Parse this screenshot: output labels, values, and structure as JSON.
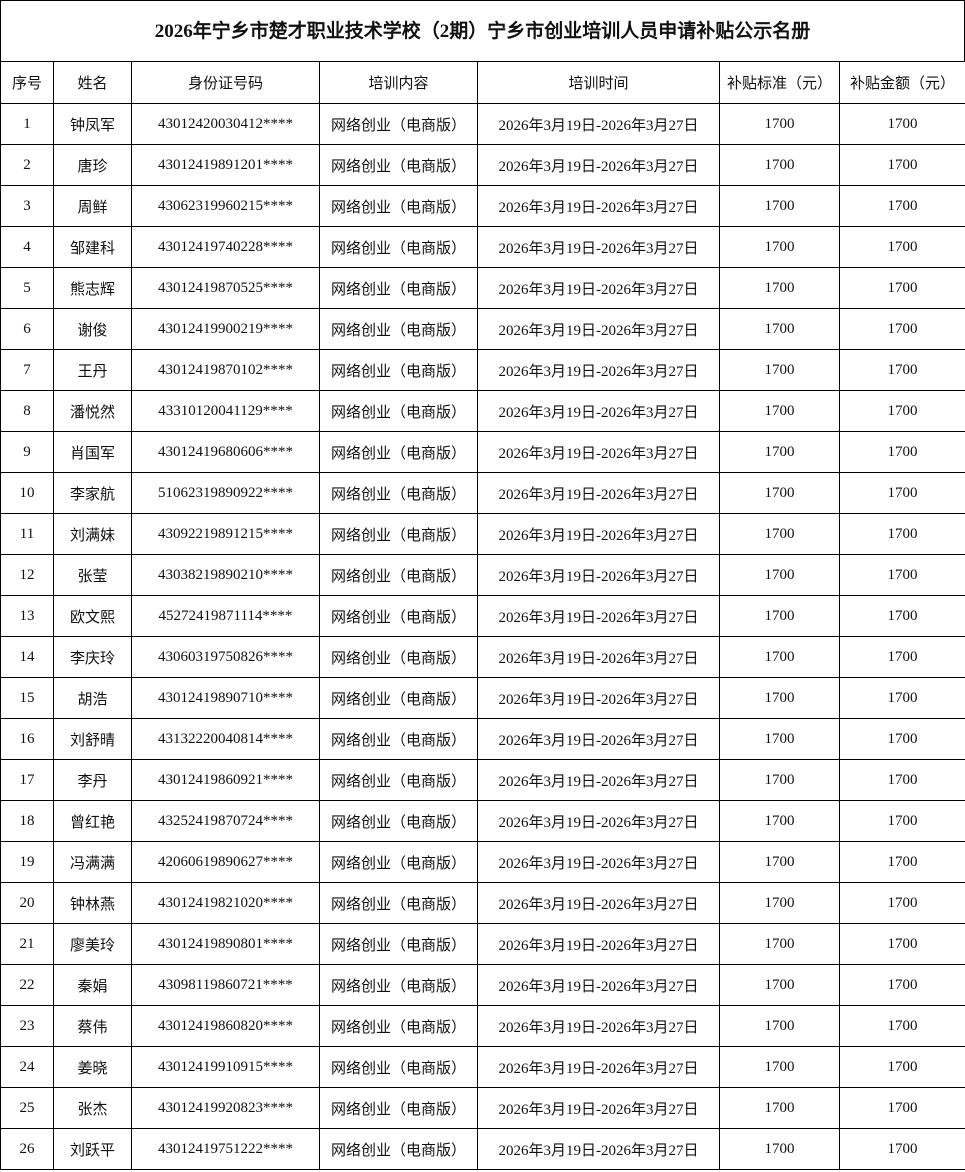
{
  "title": "2026年宁乡市楚才职业技术学校（2期）宁乡市创业培训人员申请补贴公示名册",
  "columns": [
    "序号",
    "姓名",
    "身份证号码",
    "培训内容",
    "培训时间",
    "补贴标准（元）",
    "补贴金额（元）"
  ],
  "rows": [
    [
      "1",
      "钟凤军",
      "43012420030412****",
      "网络创业（电商版）",
      "2026年3月19日-2026年3月27日",
      "1700",
      "1700"
    ],
    [
      "2",
      "唐珍",
      "43012419891201****",
      "网络创业（电商版）",
      "2026年3月19日-2026年3月27日",
      "1700",
      "1700"
    ],
    [
      "3",
      "周鲜",
      "43062319960215****",
      "网络创业（电商版）",
      "2026年3月19日-2026年3月27日",
      "1700",
      "1700"
    ],
    [
      "4",
      "邹建科",
      "43012419740228****",
      "网络创业（电商版）",
      "2026年3月19日-2026年3月27日",
      "1700",
      "1700"
    ],
    [
      "5",
      "熊志辉",
      "43012419870525****",
      "网络创业（电商版）",
      "2026年3月19日-2026年3月27日",
      "1700",
      "1700"
    ],
    [
      "6",
      "谢俊",
      "43012419900219****",
      "网络创业（电商版）",
      "2026年3月19日-2026年3月27日",
      "1700",
      "1700"
    ],
    [
      "7",
      "王丹",
      "43012419870102****",
      "网络创业（电商版）",
      "2026年3月19日-2026年3月27日",
      "1700",
      "1700"
    ],
    [
      "8",
      "潘悦然",
      "43310120041129****",
      "网络创业（电商版）",
      "2026年3月19日-2026年3月27日",
      "1700",
      "1700"
    ],
    [
      "9",
      "肖国军",
      "43012419680606****",
      "网络创业（电商版）",
      "2026年3月19日-2026年3月27日",
      "1700",
      "1700"
    ],
    [
      "10",
      "李家航",
      "51062319890922****",
      "网络创业（电商版）",
      "2026年3月19日-2026年3月27日",
      "1700",
      "1700"
    ],
    [
      "11",
      "刘满妹",
      "43092219891215****",
      "网络创业（电商版）",
      "2026年3月19日-2026年3月27日",
      "1700",
      "1700"
    ],
    [
      "12",
      "张莹",
      "43038219890210****",
      "网络创业（电商版）",
      "2026年3月19日-2026年3月27日",
      "1700",
      "1700"
    ],
    [
      "13",
      "欧文熙",
      "45272419871114****",
      "网络创业（电商版）",
      "2026年3月19日-2026年3月27日",
      "1700",
      "1700"
    ],
    [
      "14",
      "李庆玲",
      "43060319750826****",
      "网络创业（电商版）",
      "2026年3月19日-2026年3月27日",
      "1700",
      "1700"
    ],
    [
      "15",
      "胡浩",
      "43012419890710****",
      "网络创业（电商版）",
      "2026年3月19日-2026年3月27日",
      "1700",
      "1700"
    ],
    [
      "16",
      "刘舒晴",
      "43132220040814****",
      "网络创业（电商版）",
      "2026年3月19日-2026年3月27日",
      "1700",
      "1700"
    ],
    [
      "17",
      "李丹",
      "43012419860921****",
      "网络创业（电商版）",
      "2026年3月19日-2026年3月27日",
      "1700",
      "1700"
    ],
    [
      "18",
      "曾红艳",
      "43252419870724****",
      "网络创业（电商版）",
      "2026年3月19日-2026年3月27日",
      "1700",
      "1700"
    ],
    [
      "19",
      "冯满满",
      "42060619890627****",
      "网络创业（电商版）",
      "2026年3月19日-2026年3月27日",
      "1700",
      "1700"
    ],
    [
      "20",
      "钟林燕",
      "43012419821020****",
      "网络创业（电商版）",
      "2026年3月19日-2026年3月27日",
      "1700",
      "1700"
    ],
    [
      "21",
      "廖美玲",
      "43012419890801****",
      "网络创业（电商版）",
      "2026年3月19日-2026年3月27日",
      "1700",
      "1700"
    ],
    [
      "22",
      "秦娟",
      "43098119860721****",
      "网络创业（电商版）",
      "2026年3月19日-2026年3月27日",
      "1700",
      "1700"
    ],
    [
      "23",
      "蔡伟",
      "43012419860820****",
      "网络创业（电商版）",
      "2026年3月19日-2026年3月27日",
      "1700",
      "1700"
    ],
    [
      "24",
      "姜晓",
      "43012419910915****",
      "网络创业（电商版）",
      "2026年3月19日-2026年3月27日",
      "1700",
      "1700"
    ],
    [
      "25",
      "张杰",
      "43012419920823****",
      "网络创业（电商版）",
      "2026年3月19日-2026年3月27日",
      "1700",
      "1700"
    ],
    [
      "26",
      "刘跃平",
      "43012419751222****",
      "网络创业（电商版）",
      "2026年3月19日-2026年3月27日",
      "1700",
      "1700"
    ]
  ]
}
